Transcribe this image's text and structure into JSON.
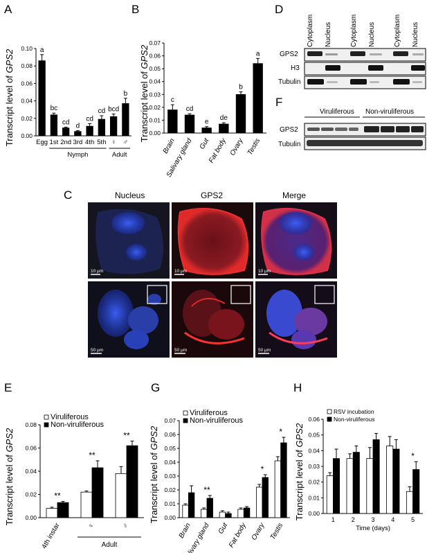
{
  "panels": {
    "A": {
      "label": "A"
    },
    "B": {
      "label": "B"
    },
    "C": {
      "label": "C"
    },
    "D": {
      "label": "D"
    },
    "E": {
      "label": "E"
    },
    "F": {
      "label": "F"
    },
    "G": {
      "label": "G"
    },
    "H": {
      "label": "H"
    }
  },
  "ylabel_prefix": "Transcript level of ",
  "ylabel_gene": "GPS2",
  "chart_data": [
    {
      "id": "A",
      "type": "bar",
      "categories": [
        "Egg",
        "1st",
        "2nd",
        "3rd",
        "4th",
        "5th",
        "♀",
        "♂"
      ],
      "values": [
        0.086,
        0.024,
        0.009,
        0.005,
        0.011,
        0.019,
        0.022,
        0.037
      ],
      "errors": [
        0.007,
        0.002,
        0.001,
        0.001,
        0.003,
        0.004,
        0.003,
        0.006
      ],
      "letters": [
        "a",
        "bc",
        "cd",
        "d",
        "cd",
        "cd",
        "bcd",
        "b"
      ],
      "groups": [
        {
          "label": "Nymph",
          "from": 1,
          "to": 5
        },
        {
          "label": "Adult",
          "from": 6,
          "to": 7
        }
      ],
      "ylim": [
        0,
        0.1
      ],
      "yticks": [
        "0.00",
        "0.02",
        "0.04",
        "0.06",
        "0.08",
        "0.10"
      ]
    },
    {
      "id": "B",
      "type": "bar",
      "categories": [
        "Brain",
        "Salivary gland",
        "Gut",
        "Fat body",
        "Ovary",
        "Testis"
      ],
      "values": [
        0.018,
        0.014,
        0.004,
        0.007,
        0.03,
        0.054
      ],
      "errors": [
        0.004,
        0.001,
        0.001,
        0.001,
        0.002,
        0.004
      ],
      "letters": [
        "c",
        "cd",
        "e",
        "de",
        "b",
        "a"
      ],
      "ylim": [
        0,
        0.07
      ],
      "yticks": [
        "0.00",
        "0.01",
        "0.02",
        "0.03",
        "0.04",
        "0.05",
        "0.06",
        "0.07"
      ]
    },
    {
      "id": "E",
      "type": "bar",
      "categories": [
        "4th instar",
        "♀",
        "♂"
      ],
      "group_label": "Adult",
      "series": [
        {
          "name": "Viruliferous",
          "values": [
            0.008,
            0.022,
            0.038
          ],
          "errors": [
            0.001,
            0.001,
            0.006
          ]
        },
        {
          "name": "Non-viruliferous",
          "values": [
            0.013,
            0.043,
            0.062
          ],
          "errors": [
            0.001,
            0.006,
            0.004
          ]
        }
      ],
      "sig": [
        "**",
        "**",
        "**"
      ],
      "ylim": [
        0,
        0.08
      ],
      "yticks": [
        "0.00",
        "0.02",
        "0.04",
        "0.06",
        "0.08"
      ]
    },
    {
      "id": "G",
      "type": "bar",
      "categories": [
        "Brain",
        "Salivary gland",
        "Gut",
        "Fat body",
        "Ovary",
        "Testis"
      ],
      "series": [
        {
          "name": "Viruliferous",
          "values": [
            0.009,
            0.006,
            0.004,
            0.006,
            0.022,
            0.041
          ],
          "errors": [
            0.001,
            0.001,
            0.001,
            0.001,
            0.002,
            0.003
          ]
        },
        {
          "name": "Non-viruliferous",
          "values": [
            0.018,
            0.014,
            0.003,
            0.007,
            0.029,
            0.054
          ],
          "errors": [
            0.005,
            0.002,
            0.001,
            0.001,
            0.002,
            0.004
          ]
        }
      ],
      "sig": [
        "",
        "**",
        "",
        "",
        "*",
        "*"
      ],
      "ylim": [
        0,
        0.07
      ],
      "yticks": [
        "0.00",
        "0.01",
        "0.02",
        "0.03",
        "0.04",
        "0.05",
        "0.06",
        "0.07"
      ]
    },
    {
      "id": "H",
      "type": "bar",
      "categories": [
        "1",
        "2",
        "3",
        "4",
        "5"
      ],
      "xlabel": "Time (days)",
      "series": [
        {
          "name": "RSV incubation",
          "values": [
            0.024,
            0.035,
            0.035,
            0.043,
            0.014
          ],
          "errors": [
            0.002,
            0.003,
            0.007,
            0.006,
            0.003
          ]
        },
        {
          "name": "Non-viruliferous",
          "values": [
            0.035,
            0.039,
            0.047,
            0.041,
            0.028
          ],
          "errors": [
            0.006,
            0.004,
            0.004,
            0.006,
            0.005
          ]
        }
      ],
      "sig": [
        "",
        "",
        "",
        "",
        "*"
      ],
      "ylim": [
        0,
        0.06
      ],
      "yticks": [
        "0.00",
        "0.01",
        "0.02",
        "0.03",
        "0.04",
        "0.05",
        "0.06"
      ]
    }
  ],
  "blotD": {
    "columns": [
      "Cytoplasm",
      "Nucleus",
      "Cytoplasm",
      "Nucleus",
      "Cytoplasm",
      "Nucleus"
    ],
    "rows": [
      "GPS2",
      "H3",
      "Tubulin"
    ]
  },
  "blotF": {
    "groups": [
      "Viruliferous",
      "Non-viruliferous"
    ],
    "rows": [
      "GPS2",
      "Tubulin"
    ]
  },
  "microscopy": {
    "headers": [
      "Nucleus",
      "GPS2",
      "Merge"
    ],
    "scalebars": [
      "10 μm",
      "10 μm",
      "10 μm",
      "50 μm",
      "50 μm",
      "50 μm"
    ]
  },
  "colors": {
    "bar_fill": "#000000",
    "open_fill": "#ffffff",
    "blue": "#2e4bd6",
    "red": "#d0201e"
  }
}
